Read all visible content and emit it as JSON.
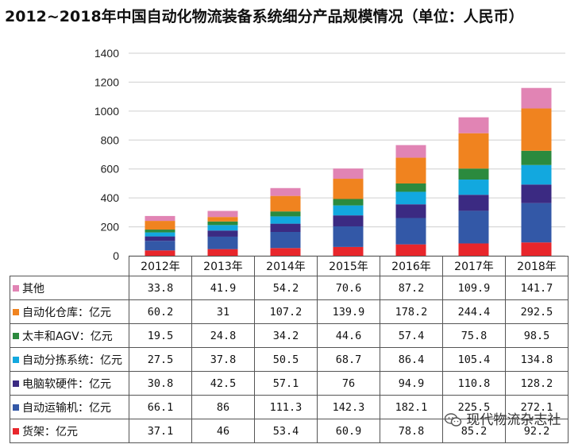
{
  "title": "2012~2018年中国自动化物流装备系统细分产品规模情况（单位：人民币）",
  "watermark": "现代物流杂志社",
  "chart_data": {
    "type": "bar",
    "stacked": true,
    "title": "2012~2018年中国自动化物流装备系统细分产品规模情况（单位：人民币）",
    "categories": [
      "2012年",
      "2013年",
      "2014年",
      "2015年",
      "2016年",
      "2017年",
      "2018年"
    ],
    "ylim": [
      0,
      1400
    ],
    "yticks": [
      0,
      200,
      400,
      600,
      800,
      1000,
      1200,
      1400
    ],
    "ytick_labels": [
      "0",
      "200",
      "400",
      "600",
      "800",
      "1000",
      "1200",
      "1400"
    ],
    "grid": true,
    "series": [
      {
        "name": "货架：亿元",
        "color": "#e8262b",
        "values": [
          37.1,
          46,
          53.4,
          60.9,
          78.8,
          85.2,
          92.2
        ],
        "labels": [
          "37.1",
          "46",
          "53.4",
          "60.9",
          "78.8",
          "85.2",
          "92.2"
        ]
      },
      {
        "name": "自动运输机：亿元",
        "color": "#3358a7",
        "values": [
          66.1,
          86,
          111.3,
          142.3,
          182.1,
          225.5,
          272.1
        ],
        "labels": [
          "66.1",
          "86",
          "111.3",
          "142.3",
          "182.1",
          "225.5",
          "272.1"
        ]
      },
      {
        "name": "电脑软硬件：亿元",
        "color": "#3b2a82",
        "values": [
          30.8,
          42.5,
          57.1,
          76,
          94.9,
          110.8,
          128.2
        ],
        "labels": [
          "30.8",
          "42.5",
          "57.1",
          "76",
          "94.9",
          "110.8",
          "128.2"
        ]
      },
      {
        "name": "自动分拣系统：亿元",
        "color": "#12a8df",
        "values": [
          27.5,
          37.8,
          50.5,
          68.7,
          86.4,
          105.4,
          134.8
        ],
        "labels": [
          "27.5",
          "37.8",
          "50.5",
          "68.7",
          "86.4",
          "105.4",
          "134.8"
        ]
      },
      {
        "name": "太丰和AGV：亿元",
        "color": "#2b8a3e",
        "values": [
          19.5,
          24.8,
          34.2,
          44.6,
          57.4,
          75.8,
          98.5
        ],
        "labels": [
          "19.5",
          "24.8",
          "34.2",
          "44.6",
          "57.4",
          "75.8",
          "98.5"
        ]
      },
      {
        "name": "自动化仓库：亿元",
        "color": "#f0831f",
        "values": [
          60.2,
          31,
          107.2,
          139.9,
          178.2,
          244.4,
          292.5
        ],
        "labels": [
          "60.2",
          "31",
          "107.2",
          "139.9",
          "178.2",
          "244.4",
          "292.5"
        ]
      },
      {
        "name": "其他",
        "color": "#e184b4",
        "values": [
          33.8,
          41.9,
          54.2,
          70.6,
          87.2,
          109.9,
          141.7
        ],
        "labels": [
          "33.8",
          "41.9",
          "54.2",
          "70.6",
          "87.2",
          "109.9",
          "141.7"
        ]
      }
    ]
  }
}
